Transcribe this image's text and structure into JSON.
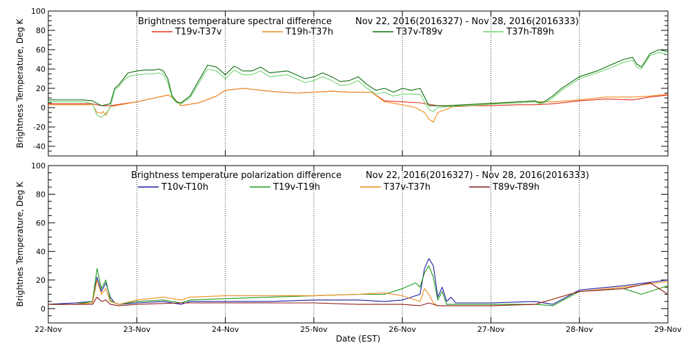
{
  "figure": {
    "xlabel": "Date (EST)",
    "x_tick_labels": [
      "22-Nov",
      "23-Nov",
      "24-Nov",
      "25-Nov",
      "26-Nov",
      "27-Nov",
      "28-Nov",
      "29-Nov"
    ]
  },
  "chart_data": [
    {
      "type": "line",
      "title": "Brightness temperature spectral difference",
      "subtitle": "Nov 22, 2016(2016327) - Nov 28, 2016(2016333)",
      "ylabel": "Brightness Temperature, Deg K",
      "xlim": [
        0,
        7
      ],
      "ylim": [
        -50,
        100
      ],
      "y_ticks": [
        -40,
        -20,
        0,
        20,
        40,
        60,
        80,
        100
      ],
      "x_unit": "days since 22-Nov",
      "grid": true,
      "legend_position": "top",
      "series": [
        {
          "name": "T19v-T37v",
          "color": "#e0301e",
          "x": [
            0,
            0.5,
            0.55,
            0.6,
            0.7,
            1.0,
            1.2,
            1.35,
            1.4,
            1.5,
            1.7,
            1.9,
            2.0,
            2.2,
            2.5,
            2.8,
            3.0,
            3.2,
            3.4,
            3.5,
            3.65,
            3.8,
            4.0,
            4.2,
            4.4,
            4.6,
            4.8,
            5.0,
            5.3,
            5.5,
            5.7,
            6.0,
            6.3,
            6.6,
            6.8,
            7.0
          ],
          "y": [
            4,
            4,
            3,
            2,
            2,
            6,
            10,
            13,
            11,
            2,
            5,
            12,
            18,
            20,
            17,
            15,
            16,
            17,
            16,
            16,
            16,
            7,
            6,
            5,
            2,
            1,
            2,
            2,
            3,
            3,
            4,
            7,
            9,
            8,
            11,
            13
          ]
        },
        {
          "name": "T19h-T37h",
          "color": "#f08a1c",
          "x": [
            0,
            0.5,
            0.55,
            0.6,
            0.62,
            0.65,
            0.7,
            1.0,
            1.2,
            1.35,
            1.4,
            1.5,
            1.7,
            1.9,
            2.0,
            2.2,
            2.5,
            2.8,
            3.0,
            3.2,
            3.4,
            3.5,
            3.65,
            3.8,
            4.0,
            4.15,
            4.25,
            4.3,
            4.35,
            4.4,
            4.6,
            4.8,
            5.0,
            5.3,
            5.5,
            5.7,
            6.0,
            6.3,
            6.6,
            6.8,
            7.0
          ],
          "y": [
            3,
            3,
            -5,
            -6,
            -4,
            -8,
            1,
            6,
            10,
            13,
            11,
            2,
            5,
            12,
            18,
            20,
            17,
            15,
            16,
            17,
            16,
            16,
            16,
            6,
            3,
            0,
            -5,
            -12,
            -15,
            -5,
            2,
            2,
            4,
            5,
            6,
            6,
            8,
            11,
            11,
            12,
            14
          ]
        },
        {
          "name": "T37v-T89v",
          "color": "#0a6a0a",
          "x": [
            0,
            0.4,
            0.5,
            0.6,
            0.7,
            0.75,
            0.8,
            0.85,
            0.9,
            1.0,
            1.1,
            1.2,
            1.25,
            1.3,
            1.35,
            1.4,
            1.45,
            1.5,
            1.6,
            1.7,
            1.75,
            1.8,
            1.9,
            2.0,
            2.1,
            2.2,
            2.3,
            2.4,
            2.5,
            2.6,
            2.7,
            2.8,
            2.9,
            3.0,
            3.1,
            3.2,
            3.3,
            3.4,
            3.5,
            3.6,
            3.7,
            3.8,
            3.9,
            4.0,
            4.1,
            4.2,
            4.3,
            4.4,
            4.5,
            4.7,
            4.9,
            5.1,
            5.3,
            5.5,
            5.55,
            5.6,
            5.7,
            5.8,
            5.9,
            6.0,
            6.2,
            6.4,
            6.5,
            6.6,
            6.65,
            6.7,
            6.8,
            6.9,
            7.0
          ],
          "y": [
            8,
            8,
            7,
            2,
            4,
            20,
            24,
            30,
            36,
            38,
            39,
            39,
            40,
            38,
            30,
            12,
            6,
            5,
            12,
            28,
            36,
            44,
            42,
            34,
            43,
            38,
            38,
            42,
            36,
            37,
            38,
            34,
            30,
            32,
            36,
            32,
            27,
            28,
            32,
            24,
            18,
            20,
            16,
            20,
            18,
            20,
            2,
            2,
            2,
            3,
            4,
            5,
            6,
            7,
            5,
            6,
            12,
            20,
            26,
            32,
            38,
            46,
            50,
            52,
            45,
            42,
            56,
            60,
            58
          ]
        },
        {
          "name": "T37h-T89h",
          "color": "#6fd36f",
          "x": [
            0,
            0.4,
            0.5,
            0.55,
            0.6,
            0.65,
            0.7,
            0.75,
            0.8,
            0.85,
            0.9,
            1.0,
            1.1,
            1.2,
            1.25,
            1.3,
            1.35,
            1.4,
            1.45,
            1.5,
            1.6,
            1.7,
            1.75,
            1.8,
            1.9,
            2.0,
            2.1,
            2.2,
            2.3,
            2.4,
            2.5,
            2.6,
            2.7,
            2.8,
            2.9,
            3.0,
            3.1,
            3.2,
            3.3,
            3.4,
            3.5,
            3.6,
            3.7,
            3.8,
            3.9,
            4.0,
            4.1,
            4.2,
            4.3,
            4.35,
            4.4,
            4.5,
            4.7,
            4.9,
            5.1,
            5.3,
            5.5,
            5.55,
            5.6,
            5.7,
            5.8,
            5.9,
            6.0,
            6.2,
            6.4,
            6.5,
            6.6,
            6.65,
            6.7,
            6.8,
            6.9,
            7.0
          ],
          "y": [
            6,
            6,
            4,
            -8,
            -10,
            -6,
            0,
            18,
            22,
            28,
            32,
            34,
            35,
            35,
            36,
            34,
            26,
            10,
            5,
            4,
            10,
            25,
            33,
            40,
            38,
            30,
            39,
            34,
            34,
            38,
            32,
            33,
            34,
            30,
            26,
            28,
            32,
            28,
            23,
            24,
            28,
            20,
            14,
            16,
            12,
            14,
            14,
            14,
            -2,
            -4,
            0,
            1,
            2,
            3,
            4,
            5,
            6,
            4,
            5,
            10,
            18,
            24,
            30,
            36,
            43,
            47,
            49,
            42,
            40,
            54,
            57,
            55
          ]
        }
      ]
    },
    {
      "type": "line",
      "title": "Brightness temperature polarization difference",
      "subtitle": "Nov 22, 2016(2016327) - Nov 28, 2016(2016333)",
      "ylabel": "Brightnes Temperature, Deg K",
      "xlim": [
        0,
        7
      ],
      "ylim": [
        -10,
        100
      ],
      "y_ticks": [
        0,
        20,
        40,
        60,
        80,
        100
      ],
      "x_unit": "days since 22-Nov",
      "grid": true,
      "legend_position": "top",
      "series": [
        {
          "name": "T10v-T10h",
          "color": "#1a1aa0",
          "x": [
            0,
            0.3,
            0.5,
            0.55,
            0.6,
            0.65,
            0.7,
            0.75,
            0.8,
            1.0,
            1.3,
            1.5,
            1.6,
            2.0,
            2.5,
            3.0,
            3.5,
            3.8,
            4.0,
            4.2,
            4.25,
            4.3,
            4.35,
            4.4,
            4.45,
            4.5,
            4.55,
            4.6,
            5.0,
            5.5,
            5.7,
            6.0,
            6.5,
            7.0
          ],
          "y": [
            3,
            4,
            5,
            22,
            12,
            18,
            8,
            4,
            3,
            4,
            5,
            3,
            5,
            5,
            5,
            6,
            6,
            5,
            6,
            10,
            28,
            35,
            30,
            8,
            15,
            5,
            8,
            4,
            4,
            5,
            3,
            13,
            16,
            20
          ]
        },
        {
          "name": "T19v-T19h",
          "color": "#1a9a1a",
          "x": [
            0,
            0.3,
            0.5,
            0.55,
            0.6,
            0.65,
            0.7,
            0.75,
            0.8,
            1.0,
            1.3,
            1.5,
            1.6,
            2.0,
            2.5,
            3.0,
            3.5,
            3.8,
            4.0,
            4.15,
            4.2,
            4.25,
            4.3,
            4.35,
            4.4,
            4.45,
            4.5,
            4.6,
            5.0,
            5.5,
            5.7,
            6.0,
            6.5,
            6.7,
            7.0
          ],
          "y": [
            3,
            3,
            5,
            28,
            14,
            20,
            6,
            4,
            3,
            5,
            6,
            4,
            6,
            7,
            8,
            9,
            10,
            10,
            14,
            18,
            15,
            25,
            30,
            22,
            6,
            12,
            3,
            3,
            3,
            3,
            2,
            12,
            14,
            10,
            16
          ]
        },
        {
          "name": "T37v-T37h",
          "color": "#f08a1c",
          "x": [
            0,
            0.3,
            0.5,
            0.55,
            0.6,
            0.65,
            0.7,
            0.8,
            1.0,
            1.3,
            1.5,
            1.6,
            2.0,
            2.5,
            3.0,
            3.5,
            3.8,
            4.0,
            4.2,
            4.25,
            4.3,
            4.35,
            4.4,
            4.6,
            5.0,
            5.5,
            6.0,
            6.5,
            7.0
          ],
          "y": [
            3,
            3,
            4,
            20,
            10,
            14,
            5,
            3,
            6,
            8,
            6,
            8,
            9,
            9,
            9,
            10,
            11,
            9,
            5,
            14,
            10,
            4,
            2,
            2,
            2,
            3,
            12,
            15,
            19
          ]
        },
        {
          "name": "T89v-T89h",
          "color": "#8a1a1a",
          "x": [
            0,
            0.3,
            0.5,
            0.55,
            0.6,
            0.65,
            0.7,
            0.8,
            1.0,
            1.5,
            2.0,
            2.5,
            3.0,
            3.5,
            3.8,
            4.0,
            4.2,
            4.3,
            4.4,
            4.6,
            5.0,
            5.5,
            6.0,
            6.5,
            6.8,
            7.0
          ],
          "y": [
            3,
            3,
            3,
            8,
            5,
            6,
            3,
            2,
            3,
            4,
            4,
            4,
            4,
            3,
            3,
            3,
            2,
            4,
            2,
            2,
            2,
            3,
            12,
            14,
            18,
            10
          ]
        }
      ]
    }
  ]
}
